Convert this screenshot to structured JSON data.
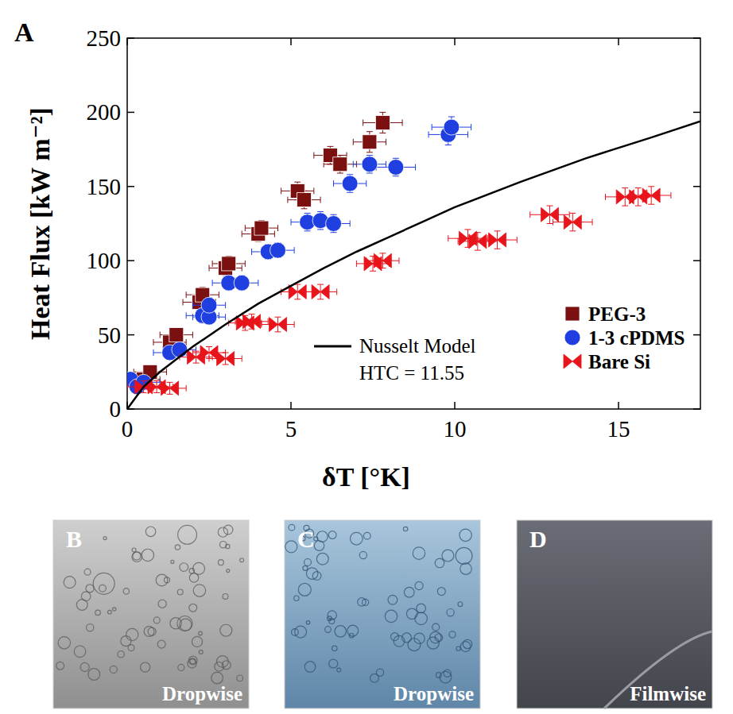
{
  "panel": "A",
  "chart_data": {
    "type": "scatter",
    "x_label": "δT  [°K]",
    "y_label": "Heat Flux [kW m⁻²]",
    "xlim": [
      0,
      17.5
    ],
    "xticks": [
      0,
      5,
      10,
      15
    ],
    "ylim": [
      0,
      250
    ],
    "yticks": [
      0,
      50,
      100,
      150,
      200,
      250
    ],
    "grid": false,
    "legend": "lower right",
    "annotations": [
      "HTC = 11.55"
    ],
    "series": [
      {
        "name": "PEG-3",
        "color": "#7a1010",
        "marker": "square",
        "x": [
          0.5,
          0.7,
          1.3,
          1.5,
          2.2,
          2.3,
          3.0,
          3.1,
          4.0,
          4.1,
          5.2,
          5.4,
          6.2,
          6.5,
          7.4,
          7.8
        ],
        "values": [
          20,
          25,
          45,
          50,
          72,
          77,
          95,
          98,
          118,
          122,
          147,
          141,
          171,
          165,
          180,
          193
        ],
        "x_error": [
          0.5,
          0.5,
          0.5,
          0.5,
          0.5,
          0.5,
          0.5,
          0.5,
          0.5,
          0.5,
          0.5,
          0.5,
          0.5,
          0.5,
          0.5,
          0.6
        ],
        "y_error": [
          4,
          4,
          4,
          4,
          5,
          5,
          5,
          5,
          5,
          5,
          6,
          6,
          6,
          6,
          7,
          7
        ]
      },
      {
        "name": "1-3 cPDMS",
        "color": "#1f3fe0",
        "marker": "circle",
        "x": [
          0.1,
          0.3,
          0.5,
          1.3,
          1.6,
          2.3,
          2.5,
          2.5,
          3.1,
          3.5,
          4.3,
          4.6,
          5.5,
          5.9,
          6.3,
          6.8,
          7.4,
          8.2,
          9.8,
          9.9
        ],
        "values": [
          20,
          15,
          18,
          38,
          40,
          63,
          62,
          70,
          85,
          85,
          106,
          107,
          126,
          127,
          125,
          152,
          165,
          163,
          185,
          190
        ],
        "x_error": [
          0.5,
          0.5,
          0.5,
          0.5,
          0.5,
          0.5,
          0.5,
          0.5,
          0.5,
          0.5,
          0.5,
          0.5,
          0.5,
          0.5,
          0.5,
          0.5,
          0.5,
          0.6,
          0.6,
          0.6
        ],
        "y_error": [
          4,
          4,
          4,
          4,
          4,
          5,
          5,
          5,
          5,
          5,
          5,
          5,
          6,
          6,
          6,
          6,
          6,
          6,
          7,
          7
        ]
      },
      {
        "name": "Bare Si",
        "color": "#e8141c",
        "marker": "bowtie",
        "x": [
          0.5,
          0.9,
          1.3,
          2.1,
          2.5,
          3.0,
          3.6,
          3.8,
          4.6,
          5.2,
          5.9,
          7.5,
          7.8,
          10.4,
          10.7,
          11.3,
          12.9,
          13.6,
          15.2,
          15.6,
          16.0
        ],
        "values": [
          15,
          15,
          14,
          35,
          38,
          34,
          58,
          59,
          57,
          79,
          79,
          98,
          100,
          115,
          113,
          114,
          131,
          126,
          143,
          143,
          144
        ],
        "x_error": [
          0.5,
          0.5,
          0.5,
          0.5,
          0.5,
          0.5,
          0.5,
          0.5,
          0.5,
          0.5,
          0.5,
          0.5,
          0.5,
          0.6,
          0.6,
          0.6,
          0.6,
          0.6,
          0.6,
          0.6,
          0.6
        ],
        "y_error": [
          4,
          4,
          4,
          4,
          4,
          4,
          5,
          5,
          5,
          5,
          5,
          5,
          5,
          6,
          6,
          6,
          6,
          6,
          6,
          6,
          6
        ]
      },
      {
        "name": "Nusselt Model",
        "type": "line",
        "color": "#000000",
        "line_style": "solid",
        "x": [
          0,
          0.5,
          1,
          2,
          3,
          4,
          5,
          6,
          7,
          8,
          9,
          10,
          12,
          14,
          16,
          17.5
        ],
        "values": [
          0,
          15,
          25,
          42,
          57,
          71,
          83,
          95,
          106,
          116,
          126,
          136,
          153,
          169,
          183,
          194
        ]
      }
    ]
  },
  "photos": [
    {
      "panel": "B",
      "label": "Dropwise"
    },
    {
      "panel": "C",
      "label": "Dropwise"
    },
    {
      "panel": "D",
      "label": "Filmwise"
    }
  ]
}
